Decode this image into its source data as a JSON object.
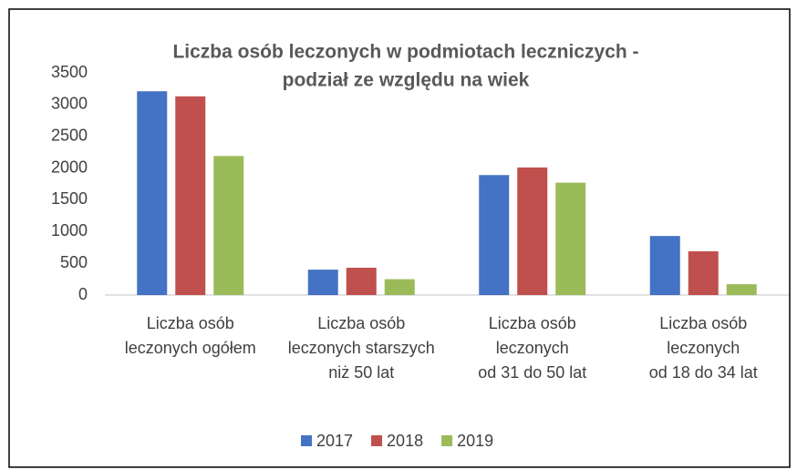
{
  "chart_data": {
    "type": "bar",
    "title": [
      "Liczba osób leczonych w podmiotach leczniczych -",
      "podział ze względu na wiek"
    ],
    "categories": [
      [
        "Liczba osób",
        "leczonych ogółem"
      ],
      [
        "Liczba osób",
        "leczonych starszych",
        "niż 50 lat"
      ],
      [
        "Liczba osób",
        "leczonych",
        "od 31 do 50 lat"
      ],
      [
        "Liczba osób",
        "leczonych",
        "od 18 do 34 lat"
      ]
    ],
    "series": [
      {
        "name": "2017",
        "color": "#4472c4",
        "values": [
          3210,
          400,
          1890,
          930
        ]
      },
      {
        "name": "2018",
        "color": "#c0504d",
        "values": [
          3130,
          430,
          2010,
          690
        ]
      },
      {
        "name": "2019",
        "color": "#9bbb59",
        "values": [
          2190,
          250,
          1770,
          170
        ]
      }
    ],
    "ylim": [
      0,
      3500
    ],
    "yticks": [
      0,
      500,
      1000,
      1500,
      2000,
      2500,
      3000,
      3500
    ],
    "grid": false,
    "legend": "bottom"
  }
}
